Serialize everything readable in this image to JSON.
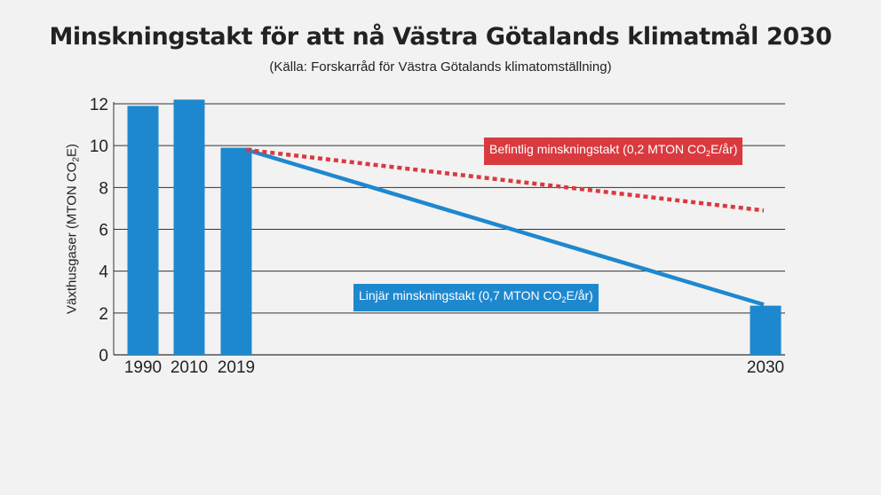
{
  "header": {
    "title": "Minskningstakt för att nå Västra Götalands klimatmål 2030",
    "subtitle": "(Källa: Forskarråd för Västra Götalands klimatomställning)"
  },
  "axis": {
    "ylabel_prefix": "Växthusgaser (MTON CO",
    "ylabel_sub": "2",
    "ylabel_suffix": "E)"
  },
  "callouts": {
    "current": {
      "prefix": "Befintlig minskningstakt (0,2 MTON CO",
      "sub": "2",
      "suffix": "E/år)"
    },
    "linear": {
      "prefix": "Linjär minskningstakt (0,7 MTON CO",
      "sub": "2",
      "suffix": "E/år)"
    }
  },
  "colors": {
    "bar": "#1e88cf",
    "linear_line": "#1e88cf",
    "current_line": "#d93a3f",
    "grid": "#333333"
  },
  "chart_data": {
    "type": "bar",
    "categories": [
      "1990",
      "2010",
      "2019",
      "2030"
    ],
    "values": [
      11.9,
      12.2,
      9.9,
      2.35
    ],
    "ylim": [
      0,
      12
    ],
    "yticks": [
      0,
      2,
      4,
      6,
      8,
      10,
      12
    ],
    "grid": true,
    "lines": [
      {
        "name": "Linjär minskningstakt",
        "style": "solid",
        "from": {
          "year": 2019,
          "value": 9.8
        },
        "to": {
          "year": 2030,
          "value": 2.4
        }
      },
      {
        "name": "Befintlig minskningstakt",
        "style": "dotted",
        "from": {
          "year": 2019,
          "value": 9.8
        },
        "to": {
          "year": 2030,
          "value": 6.9
        }
      }
    ]
  }
}
